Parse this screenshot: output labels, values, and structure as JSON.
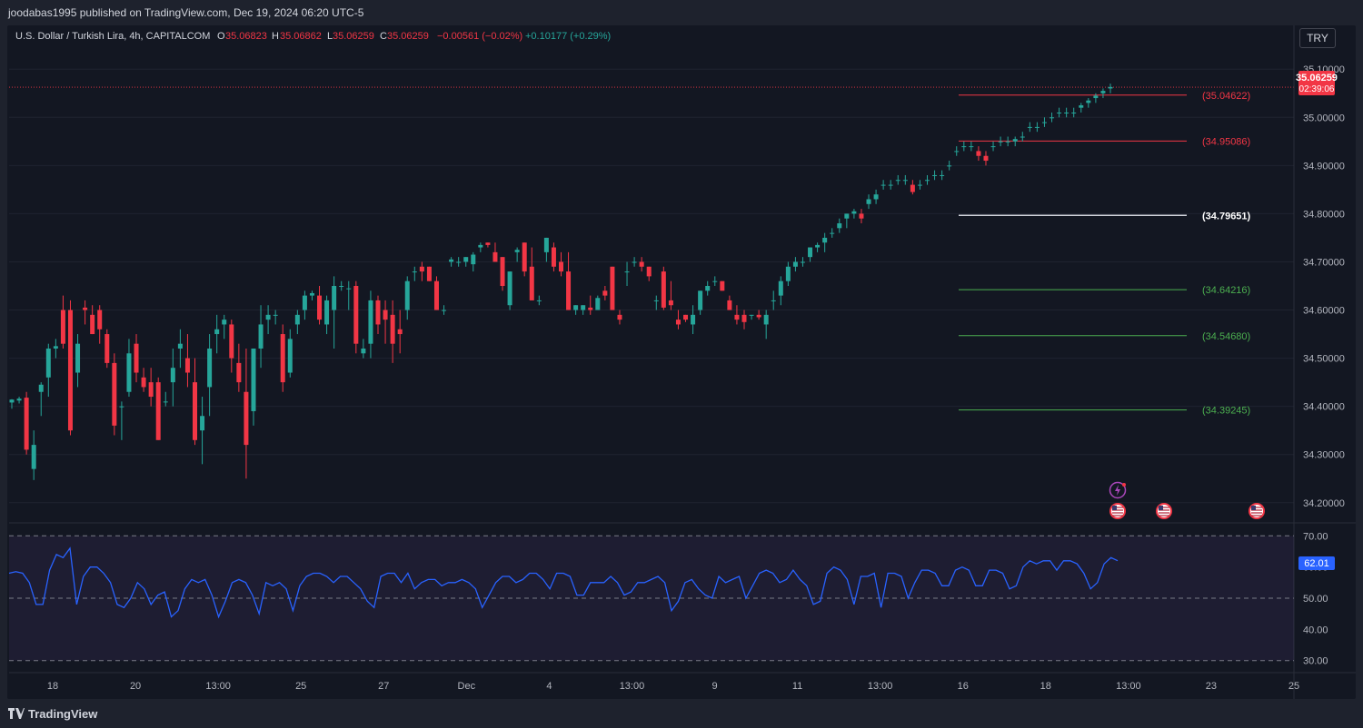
{
  "header": {
    "publisher": "joodabas1995 published on TradingView.com, Dec 19, 2024 06:20 UTC-5"
  },
  "legend": {
    "symbol": "U.S. Dollar / Turkish Lira, 4h, CAPITALCOM",
    "o_label": "O",
    "o_value": "35.06823",
    "h_label": "H",
    "h_value": "35.06862",
    "l_label": "L",
    "l_value": "35.06259",
    "c_label": "C",
    "c_value": "35.06259",
    "change": "−0.00561 (−0.02%)",
    "change2": "+0.10177 (+0.29%)"
  },
  "currency_button": "TRY",
  "colors": {
    "up": "#26a69a",
    "down": "#f23645",
    "background": "#131722",
    "rsi_line": "#2962ff",
    "rsi_band": "#7e57c2",
    "res_line": "#f23645",
    "pivot_line": "#d1d4dc",
    "sup_line": "#4caf50"
  },
  "price_badge": {
    "value": "35.06259",
    "countdown": "02:39:06"
  },
  "rsi_badge": "62.01",
  "level_labels": [
    {
      "price": 35.04622,
      "label": "(35.04622)",
      "kind": "res"
    },
    {
      "price": 34.95086,
      "label": "(34.95086)",
      "kind": "res"
    },
    {
      "price": 34.79651,
      "label": "(34.79651)",
      "kind": "pivot"
    },
    {
      "price": 34.64216,
      "label": "(34.64216)",
      "kind": "sup"
    },
    {
      "price": 34.5468,
      "label": "(34.54680)",
      "kind": "sup"
    },
    {
      "price": 34.39245,
      "label": "(34.39245)",
      "kind": "sup"
    }
  ],
  "footer": {
    "brand": "TradingView"
  },
  "chart_data": [
    {
      "type": "candlestick",
      "title": "U.S. Dollar / Turkish Lira, 4h, CAPITALCOM",
      "interval": "4h",
      "y_axis_position": "right",
      "ylim": [
        34.16,
        35.14
      ],
      "yticks": [
        "35.10000",
        "35.00000",
        "34.90000",
        "34.80000",
        "34.70000",
        "34.60000",
        "34.50000",
        "34.40000",
        "34.30000",
        "34.20000"
      ],
      "xticks": [
        "18",
        "20",
        "13:00",
        "25",
        "27",
        "Dec",
        "4",
        "13:00",
        "9",
        "11",
        "13:00",
        "16",
        "18",
        "13:00",
        "23",
        "25"
      ],
      "grid": true,
      "last_price": 35.06259,
      "candles_ohlc": [
        [
          34.408,
          34.415,
          34.395,
          34.414
        ],
        [
          34.412,
          34.42,
          34.406,
          34.416
        ],
        [
          34.418,
          34.43,
          34.3,
          34.31
        ],
        [
          34.27,
          34.35,
          34.247,
          34.32
        ],
        [
          34.43,
          34.45,
          34.38,
          34.445
        ],
        [
          34.46,
          34.53,
          34.42,
          34.52
        ],
        [
          34.52,
          34.54,
          34.5,
          34.525
        ],
        [
          34.6,
          34.63,
          34.52,
          34.53
        ],
        [
          34.6,
          34.62,
          34.34,
          34.35
        ],
        [
          34.47,
          34.55,
          34.44,
          34.53
        ],
        [
          34.605,
          34.62,
          34.57,
          34.6
        ],
        [
          34.59,
          34.61,
          34.55,
          34.55
        ],
        [
          34.6,
          34.61,
          34.53,
          34.56
        ],
        [
          34.55,
          34.56,
          34.48,
          34.49
        ],
        [
          34.49,
          34.51,
          34.34,
          34.36
        ],
        [
          34.4,
          34.41,
          34.33,
          34.4
        ],
        [
          34.43,
          34.54,
          34.42,
          34.51
        ],
        [
          34.53,
          34.55,
          34.45,
          34.47
        ],
        [
          34.46,
          34.48,
          34.43,
          34.44
        ],
        [
          34.45,
          34.48,
          34.4,
          34.42
        ],
        [
          34.45,
          34.46,
          34.33,
          34.33
        ],
        [
          34.41,
          34.43,
          34.4,
          34.41
        ],
        [
          34.45,
          34.52,
          34.4,
          34.48
        ],
        [
          34.52,
          34.56,
          34.48,
          34.53
        ],
        [
          34.5,
          34.55,
          34.44,
          34.47
        ],
        [
          34.45,
          34.5,
          34.32,
          34.33
        ],
        [
          34.35,
          34.42,
          34.28,
          34.38
        ],
        [
          34.44,
          34.55,
          34.38,
          34.52
        ],
        [
          34.55,
          34.59,
          34.51,
          34.56
        ],
        [
          34.57,
          34.59,
          34.54,
          34.58
        ],
        [
          34.57,
          34.58,
          34.47,
          34.5
        ],
        [
          34.49,
          34.53,
          34.43,
          34.45
        ],
        [
          34.43,
          34.52,
          34.25,
          34.32
        ],
        [
          34.39,
          34.52,
          34.36,
          34.52
        ],
        [
          34.52,
          34.61,
          34.48,
          34.57
        ],
        [
          34.58,
          34.61,
          34.55,
          34.59
        ],
        [
          34.59,
          34.6,
          34.57,
          34.59
        ],
        [
          34.55,
          34.57,
          34.43,
          34.45
        ],
        [
          34.47,
          34.56,
          34.46,
          34.54
        ],
        [
          34.57,
          34.6,
          34.55,
          34.59
        ],
        [
          34.6,
          34.64,
          34.58,
          34.63
        ],
        [
          34.63,
          34.64,
          34.62,
          34.635
        ],
        [
          34.63,
          34.65,
          34.57,
          34.58
        ],
        [
          34.57,
          34.63,
          34.55,
          34.62
        ],
        [
          34.6,
          34.67,
          34.52,
          34.65
        ],
        [
          34.65,
          34.66,
          34.64,
          34.65
        ],
        [
          34.645,
          34.66,
          34.6,
          34.645
        ],
        [
          34.65,
          34.66,
          34.51,
          34.53
        ],
        [
          34.51,
          34.54,
          34.5,
          34.52
        ],
        [
          34.53,
          34.64,
          34.5,
          34.62
        ],
        [
          34.62,
          34.63,
          34.55,
          34.57
        ],
        [
          34.6,
          34.62,
          34.53,
          34.58
        ],
        [
          34.59,
          34.62,
          34.49,
          34.53
        ],
        [
          34.56,
          34.6,
          34.51,
          34.55
        ],
        [
          34.6,
          34.67,
          34.58,
          34.66
        ],
        [
          34.68,
          34.69,
          34.66,
          34.68
        ],
        [
          34.69,
          34.7,
          34.66,
          34.68
        ],
        [
          34.69,
          34.69,
          34.66,
          34.66
        ],
        [
          34.66,
          34.67,
          34.6,
          34.6
        ],
        [
          34.6,
          34.61,
          34.59,
          34.6
        ],
        [
          34.7,
          34.71,
          34.69,
          34.705
        ],
        [
          34.7,
          34.71,
          34.69,
          34.7
        ],
        [
          34.7,
          34.71,
          34.69,
          34.71
        ],
        [
          34.695,
          34.72,
          34.68,
          34.715
        ],
        [
          34.73,
          34.74,
          34.72,
          34.735
        ],
        [
          34.74,
          34.74,
          34.73,
          34.735
        ],
        [
          34.72,
          34.74,
          34.7,
          34.7
        ],
        [
          34.71,
          34.71,
          34.64,
          34.65
        ],
        [
          34.61,
          34.68,
          34.6,
          34.68
        ],
        [
          34.72,
          34.73,
          34.7,
          34.725
        ],
        [
          34.74,
          34.74,
          34.67,
          34.68
        ],
        [
          34.69,
          34.73,
          34.62,
          34.62
        ],
        [
          34.62,
          34.63,
          34.61,
          34.62
        ],
        [
          34.72,
          34.75,
          34.7,
          34.75
        ],
        [
          34.73,
          34.74,
          34.68,
          34.69
        ],
        [
          34.7,
          34.72,
          34.67,
          34.68
        ],
        [
          34.68,
          34.72,
          34.6,
          34.6
        ],
        [
          34.6,
          34.61,
          34.59,
          34.61
        ],
        [
          34.6,
          34.61,
          34.59,
          34.61
        ],
        [
          34.605,
          34.63,
          34.59,
          34.6
        ],
        [
          34.6,
          34.63,
          34.6,
          34.625
        ],
        [
          34.64,
          34.65,
          34.62,
          34.63
        ],
        [
          34.69,
          34.69,
          34.6,
          34.6
        ],
        [
          34.59,
          34.6,
          34.57,
          34.58
        ],
        [
          34.68,
          34.7,
          34.65,
          34.68
        ],
        [
          34.7,
          34.71,
          34.69,
          34.7
        ],
        [
          34.7,
          34.71,
          34.68,
          34.69
        ],
        [
          34.69,
          34.69,
          34.66,
          34.67
        ],
        [
          34.62,
          34.63,
          34.6,
          34.62
        ],
        [
          34.68,
          34.69,
          34.6,
          34.605
        ],
        [
          34.62,
          34.66,
          34.6,
          34.61
        ],
        [
          34.58,
          34.6,
          34.56,
          34.57
        ],
        [
          34.59,
          34.59,
          34.575,
          34.58
        ],
        [
          34.57,
          34.61,
          34.55,
          34.59
        ],
        [
          34.6,
          34.64,
          34.59,
          34.64
        ],
        [
          34.64,
          34.66,
          34.63,
          34.65
        ],
        [
          34.66,
          34.67,
          34.65,
          34.66
        ],
        [
          34.66,
          34.66,
          34.64,
          34.64
        ],
        [
          34.62,
          34.63,
          34.6,
          34.6
        ],
        [
          34.59,
          34.61,
          34.57,
          34.58
        ],
        [
          34.59,
          34.6,
          34.56,
          34.575
        ],
        [
          34.59,
          34.59,
          34.58,
          34.59
        ],
        [
          34.59,
          34.6,
          34.58,
          34.585
        ],
        [
          34.57,
          34.6,
          34.54,
          34.59
        ],
        [
          34.62,
          34.64,
          34.6,
          34.62
        ],
        [
          34.63,
          34.67,
          34.61,
          34.66
        ],
        [
          34.66,
          34.7,
          34.65,
          34.69
        ],
        [
          34.69,
          34.71,
          34.68,
          34.7
        ],
        [
          34.7,
          34.71,
          34.69,
          34.7
        ],
        [
          34.71,
          34.73,
          34.7,
          34.73
        ],
        [
          34.73,
          34.74,
          34.72,
          34.735
        ],
        [
          34.74,
          34.76,
          34.72,
          34.75
        ],
        [
          34.76,
          34.77,
          34.75,
          34.76
        ],
        [
          34.77,
          34.79,
          34.76,
          34.78
        ],
        [
          34.79,
          34.8,
          34.77,
          34.8
        ],
        [
          34.8,
          34.81,
          34.79,
          34.805
        ],
        [
          34.8,
          34.81,
          34.78,
          34.79
        ],
        [
          34.82,
          34.84,
          34.81,
          34.83
        ],
        [
          34.83,
          34.85,
          34.82,
          34.84
        ],
        [
          34.86,
          34.87,
          34.85,
          34.86
        ],
        [
          34.86,
          34.87,
          34.85,
          34.86
        ],
        [
          34.87,
          34.88,
          34.86,
          34.87
        ],
        [
          34.87,
          34.88,
          34.86,
          34.87
        ],
        [
          34.86,
          34.87,
          34.84,
          34.845
        ],
        [
          34.86,
          34.87,
          34.85,
          34.86
        ],
        [
          34.87,
          34.88,
          34.86,
          34.87
        ],
        [
          34.88,
          34.89,
          34.87,
          34.88
        ],
        [
          34.88,
          34.89,
          34.87,
          34.88
        ],
        [
          34.9,
          34.91,
          34.89,
          34.9
        ],
        [
          34.93,
          34.94,
          34.92,
          34.93
        ],
        [
          34.94,
          34.95,
          34.93,
          34.94
        ],
        [
          34.94,
          34.95,
          34.93,
          34.94
        ],
        [
          34.93,
          34.94,
          34.91,
          34.92
        ],
        [
          34.92,
          34.93,
          34.9,
          34.91
        ],
        [
          34.94,
          34.95,
          34.93,
          34.94
        ],
        [
          34.95,
          34.96,
          34.94,
          34.95
        ],
        [
          34.95,
          34.96,
          34.94,
          34.95
        ],
        [
          34.95,
          34.96,
          34.94,
          34.955
        ],
        [
          34.96,
          34.97,
          34.95,
          34.96
        ],
        [
          34.98,
          34.99,
          34.97,
          34.98
        ],
        [
          34.98,
          34.99,
          34.97,
          34.98
        ],
        [
          34.99,
          35.0,
          34.98,
          34.99
        ],
        [
          35.0,
          35.01,
          34.99,
          35.0
        ],
        [
          35.01,
          35.02,
          35.0,
          35.01
        ],
        [
          35.01,
          35.02,
          35.0,
          35.01
        ],
        [
          35.01,
          35.02,
          35.0,
          35.01
        ],
        [
          35.02,
          35.03,
          35.01,
          35.025
        ],
        [
          35.03,
          35.04,
          35.02,
          35.035
        ],
        [
          35.04,
          35.05,
          35.03,
          35.045
        ],
        [
          35.05,
          35.06,
          35.04,
          35.055
        ],
        [
          35.06,
          35.07,
          35.05,
          35.063
        ]
      ]
    },
    {
      "type": "line",
      "title": "RSI",
      "y_axis_position": "right",
      "ylim": [
        27,
        73
      ],
      "yticks": [
        "70.00",
        "60.00",
        "50.00",
        "40.00",
        "30.00"
      ],
      "bands": [
        70,
        50,
        30
      ],
      "last_value": 62.01,
      "values": [
        58,
        58.5,
        58,
        55,
        48,
        48,
        59,
        64,
        63,
        66,
        48,
        57,
        60,
        60,
        58,
        55,
        48,
        47,
        50,
        55,
        53,
        48,
        51,
        52,
        44,
        46,
        53,
        56,
        55,
        56,
        51,
        44,
        49,
        55,
        56,
        55,
        51,
        45,
        55,
        54,
        55,
        53,
        46,
        54,
        57,
        58,
        58,
        57,
        55,
        57,
        57,
        55,
        53,
        49,
        47,
        57,
        58,
        58,
        55,
        58,
        53,
        55,
        56,
        56,
        54,
        55,
        55,
        56,
        55,
        53,
        47,
        51,
        55,
        57,
        57,
        55,
        56,
        58,
        58,
        56,
        53,
        58,
        58,
        57,
        51,
        51,
        55,
        55,
        55,
        57,
        55,
        51,
        52,
        55,
        55,
        56,
        57,
        55,
        46,
        49,
        55,
        56,
        53,
        51,
        50,
        57,
        55,
        56,
        57,
        50,
        54,
        58,
        59,
        58,
        55,
        56,
        59,
        56,
        54,
        48,
        49,
        58,
        60,
        59,
        56,
        48,
        57,
        57,
        58,
        47,
        58,
        58,
        57,
        50,
        55,
        59,
        59,
        58,
        54,
        54,
        59,
        60,
        59,
        54,
        54,
        59,
        59,
        58,
        53,
        54,
        60,
        62,
        61,
        62,
        62,
        59,
        62,
        62,
        61,
        58,
        53,
        55,
        61,
        63,
        62.01
      ]
    }
  ]
}
